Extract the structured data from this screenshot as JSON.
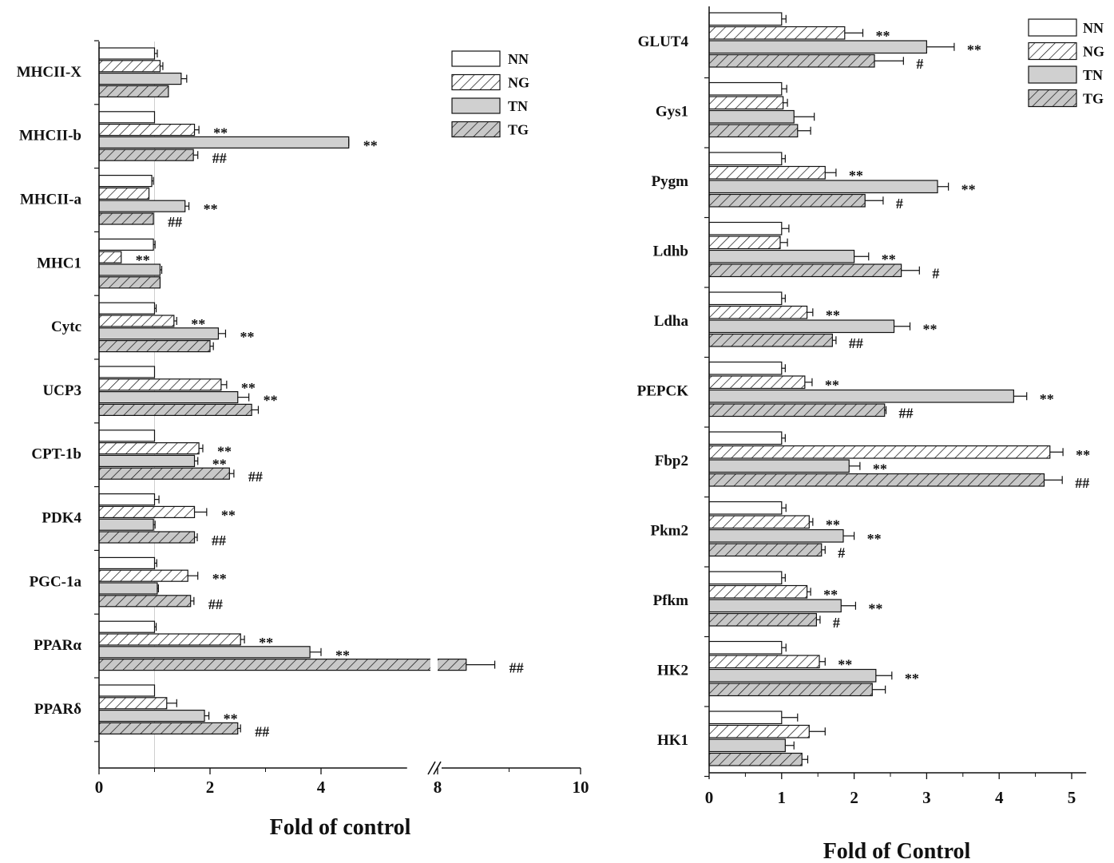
{
  "chart_data": [
    {
      "type": "bar",
      "orientation": "horizontal",
      "xlabel": "Fold of control",
      "ylabel": "",
      "xlim": [
        0,
        10
      ],
      "axis_break": [
        4.5,
        7.7
      ],
      "xticks": [
        "0",
        "2",
        "4",
        "8",
        "10"
      ],
      "reference_line": 1,
      "categories": [
        "MHCII-X",
        "MHCII-b",
        "MHCII-a",
        "MHC1",
        "Cytc",
        "UCP3",
        "CPT-1b",
        "PDK4",
        "PGC-1a",
        "PPARα",
        "PPARδ"
      ],
      "legend": [
        "NN",
        "NG",
        "TN",
        "TG"
      ],
      "series": [
        {
          "name": "NN",
          "values": [
            1.0,
            1.0,
            0.95,
            0.98,
            1.0,
            1.0,
            1.0,
            1.0,
            1.0,
            1.0,
            1.0
          ],
          "errors": [
            0.05,
            0.0,
            0.03,
            0.03,
            0.03,
            0.0,
            0.0,
            0.08,
            0.04,
            0.03,
            0.0
          ],
          "annotations": [
            "",
            "",
            "",
            "",
            "",
            "",
            "",
            "",
            "",
            "",
            ""
          ]
        },
        {
          "name": "NG",
          "values": [
            1.1,
            1.72,
            0.9,
            0.4,
            1.35,
            2.2,
            1.8,
            1.72,
            1.6,
            2.55,
            1.22
          ],
          "errors": [
            0.05,
            0.08,
            0.0,
            0.0,
            0.05,
            0.1,
            0.07,
            0.22,
            0.18,
            0.07,
            0.18
          ],
          "annotations": [
            "",
            "**",
            "",
            "**",
            "**",
            "**",
            "**",
            "**",
            "**",
            "**",
            ""
          ]
        },
        {
          "name": "TN",
          "values": [
            1.48,
            4.6,
            1.55,
            1.1,
            2.15,
            2.5,
            1.72,
            0.98,
            1.05,
            3.8,
            1.9
          ],
          "errors": [
            0.1,
            0.12,
            0.07,
            0.03,
            0.13,
            0.2,
            0.06,
            0.03,
            0.02,
            0.2,
            0.08
          ],
          "annotations": [
            "",
            "**",
            "**",
            "",
            "**",
            "**",
            "**",
            "",
            "",
            "**",
            "**"
          ]
        },
        {
          "name": "TG",
          "values": [
            1.25,
            1.7,
            0.98,
            1.1,
            2.0,
            2.75,
            2.35,
            1.72,
            1.65,
            8.4,
            2.5
          ],
          "errors": [
            0.0,
            0.08,
            0.0,
            0.0,
            0.06,
            0.12,
            0.08,
            0.05,
            0.06,
            0.4,
            0.05
          ],
          "annotations": [
            "",
            "##",
            "##",
            "",
            "",
            "",
            "##",
            "##",
            "##",
            "##",
            "##"
          ]
        }
      ]
    },
    {
      "type": "bar",
      "orientation": "horizontal",
      "xlabel": "Fold of Control",
      "ylabel": "",
      "xlim": [
        0,
        5.2
      ],
      "xticks": [
        "0",
        "1",
        "2",
        "3",
        "4",
        "5"
      ],
      "categories": [
        "GLUT4",
        "Gys1",
        "Pygm",
        "Ldhb",
        "Ldha",
        "PEPCK",
        "Fbp2",
        "Pkm2",
        "Pfkm",
        "HK2",
        "HK1"
      ],
      "legend": [
        "NN",
        "NG",
        "TN",
        "TG"
      ],
      "series": [
        {
          "name": "NN",
          "values": [
            1.0,
            1.0,
            1.0,
            1.0,
            1.0,
            1.0,
            1.0,
            1.0,
            1.0,
            1.0,
            1.0
          ],
          "errors": [
            0.06,
            0.07,
            0.05,
            0.1,
            0.05,
            0.05,
            0.05,
            0.06,
            0.05,
            0.06,
            0.22
          ],
          "annotations": [
            "",
            "",
            "",
            "",
            "",
            "",
            "",
            "",
            "",
            "",
            ""
          ]
        },
        {
          "name": "NG",
          "values": [
            1.87,
            1.02,
            1.6,
            0.98,
            1.35,
            1.32,
            4.7,
            1.38,
            1.35,
            1.52,
            1.38
          ],
          "errors": [
            0.25,
            0.06,
            0.15,
            0.1,
            0.08,
            0.1,
            0.18,
            0.05,
            0.05,
            0.08,
            0.22
          ],
          "annotations": [
            "**",
            "",
            "**",
            "",
            "**",
            "**",
            "**",
            "**",
            "**",
            "**",
            ""
          ]
        },
        {
          "name": "TN",
          "values": [
            3.0,
            1.17,
            3.15,
            2.0,
            2.55,
            4.2,
            1.93,
            1.85,
            1.82,
            2.3,
            1.05
          ],
          "errors": [
            0.38,
            0.28,
            0.15,
            0.2,
            0.22,
            0.18,
            0.15,
            0.15,
            0.2,
            0.22,
            0.12
          ],
          "annotations": [
            "**",
            "",
            "**",
            "**",
            "**",
            "**",
            "**",
            "**",
            "**",
            "**",
            ""
          ]
        },
        {
          "name": "TG",
          "values": [
            2.28,
            1.22,
            2.15,
            2.65,
            1.7,
            2.42,
            4.62,
            1.55,
            1.48,
            2.25,
            1.28
          ],
          "errors": [
            0.4,
            0.18,
            0.25,
            0.25,
            0.05,
            0.02,
            0.25,
            0.05,
            0.05,
            0.18,
            0.08
          ],
          "annotations": [
            "#",
            "",
            "#",
            "#",
            "##",
            "##",
            "##",
            "#",
            "#",
            "",
            ""
          ]
        }
      ]
    }
  ]
}
